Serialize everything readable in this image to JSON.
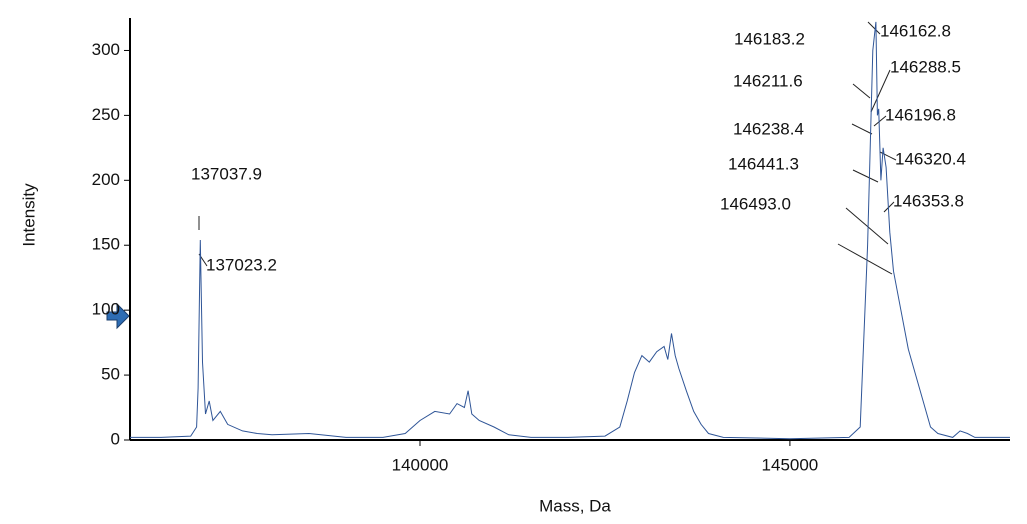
{
  "chart_data": {
    "type": "line",
    "x_label": "Mass, Da",
    "y_label": "Intensity",
    "xlim": [
      136080,
      147975
    ],
    "ylim": [
      0,
      325
    ],
    "xticks": [
      140000,
      145000
    ],
    "yticks": [
      0,
      50,
      100,
      150,
      200,
      250,
      300
    ],
    "color": "#2f5597",
    "series": [
      {
        "name": null,
        "color": "#2f5597",
        "x": [
          136080,
          136500,
          136900,
          136980,
          137000,
          137030,
          137060,
          137100,
          137150,
          137200,
          137300,
          137400,
          137600,
          137800,
          138000,
          138500,
          139000,
          139500,
          139800,
          140000,
          140200,
          140400,
          140500,
          140600,
          140650,
          140700,
          140800,
          141000,
          141200,
          141500,
          142000,
          142500,
          142700,
          142800,
          142900,
          143000,
          143100,
          143200,
          143300,
          143350,
          143400,
          143450,
          143500,
          143600,
          143700,
          143800,
          143900,
          144100,
          145000,
          145800,
          145950,
          146050,
          146120,
          146163,
          146183,
          146200,
          146230,
          146260,
          146300,
          146350,
          146400,
          146450,
          146500,
          146600,
          146700,
          146800,
          146900,
          147000,
          147200,
          147300,
          147400,
          147500,
          147975
        ],
        "values": [
          2,
          2,
          3,
          10,
          40,
          154,
          60,
          20,
          30,
          15,
          22,
          12,
          7,
          5,
          4,
          5,
          2,
          2,
          5,
          15,
          22,
          20,
          28,
          25,
          38,
          20,
          15,
          10,
          4,
          2,
          2,
          3,
          10,
          30,
          52,
          65,
          60,
          68,
          72,
          62,
          82,
          65,
          55,
          38,
          22,
          12,
          5,
          2,
          1,
          2,
          10,
          150,
          300,
          322,
          250,
          255,
          200,
          225,
          210,
          160,
          130,
          115,
          100,
          70,
          50,
          30,
          10,
          5,
          2,
          7,
          5,
          2,
          2
        ]
      }
    ],
    "annotations": [
      "137037.9",
      "137023.2",
      "146183.2",
      "146162.8",
      "146211.6",
      "146288.5",
      "146238.4",
      "146196.8",
      "146441.3",
      "146320.4",
      "146493.0",
      "146353.8"
    ]
  }
}
